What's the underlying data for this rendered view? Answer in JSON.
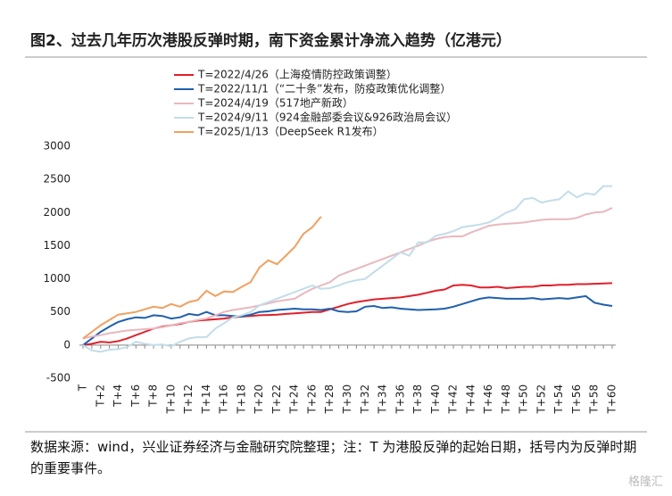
{
  "chart_data": {
    "type": "line",
    "title": "图2、过去几年历次港股反弹时期，南下资金累计净流入趋势（亿港元）",
    "categories": [
      "T",
      null,
      "T+2",
      null,
      "T+4",
      null,
      "T+6",
      null,
      "T+8",
      null,
      "T+10",
      null,
      "T+12",
      null,
      "T+14",
      null,
      "T+16",
      null,
      "T+18",
      null,
      "T+20",
      null,
      "T+22",
      null,
      "T+24",
      null,
      "T+26",
      null,
      "T+28",
      null,
      "T+30",
      null,
      "T+32",
      null,
      "T+34",
      null,
      "T+36",
      null,
      "T+38",
      null,
      "T+40",
      null,
      "T+42",
      null,
      "T+44",
      null,
      "T+46",
      null,
      "T+48",
      null,
      "T+50",
      null,
      "T+52",
      null,
      "T+54",
      null,
      "T+56",
      null,
      "T+58",
      null,
      "T+60"
    ],
    "series": [
      {
        "name": "T=2022/4/26（上海疫情防控政策调整）",
        "color": "#e0202a",
        "values": [
          0,
          20,
          50,
          40,
          60,
          100,
          150,
          200,
          250,
          280,
          300,
          320,
          350,
          370,
          380,
          390,
          400,
          420,
          430,
          440,
          450,
          455,
          460,
          470,
          480,
          490,
          500,
          500,
          540,
          580,
          620,
          650,
          670,
          690,
          700,
          710,
          720,
          740,
          760,
          790,
          820,
          840,
          900,
          910,
          900,
          870,
          870,
          880,
          860,
          870,
          880,
          880,
          900,
          900,
          910,
          910,
          920,
          920,
          925,
          930,
          935
        ]
      },
      {
        "name": "T=2022/11/1（“二十条”发布，防疫政策优化调整）",
        "color": "#1f5fad",
        "values": [
          0,
          100,
          200,
          280,
          350,
          390,
          420,
          410,
          450,
          440,
          400,
          420,
          470,
          450,
          500,
          450,
          450,
          440,
          430,
          460,
          500,
          510,
          530,
          540,
          550,
          540,
          540,
          530,
          550,
          510,
          500,
          510,
          580,
          590,
          560,
          570,
          550,
          540,
          530,
          535,
          540,
          550,
          580,
          620,
          660,
          700,
          720,
          710,
          700,
          700,
          700,
          710,
          690,
          700,
          710,
          700,
          720,
          740,
          640,
          610,
          590
        ]
      },
      {
        "name": "T=2024/4/19（517地产新政）",
        "color": "#e8b8be",
        "values": [
          100,
          130,
          150,
          180,
          200,
          220,
          230,
          240,
          250,
          270,
          300,
          330,
          350,
          380,
          400,
          450,
          500,
          530,
          550,
          570,
          600,
          630,
          660,
          680,
          700,
          780,
          850,
          900,
          950,
          1050,
          1100,
          1150,
          1200,
          1250,
          1300,
          1350,
          1400,
          1450,
          1500,
          1560,
          1600,
          1630,
          1640,
          1640,
          1700,
          1750,
          1800,
          1820,
          1830,
          1840,
          1850,
          1870,
          1890,
          1900,
          1900,
          1900,
          1920,
          1970,
          2000,
          2010,
          2070
        ]
      },
      {
        "name": "T=2024/9/11（924金融部委会议&926政治局会议）",
        "color": "#c3dde8",
        "values": [
          0,
          -80,
          -100,
          -70,
          -60,
          -30,
          50,
          20,
          0,
          10,
          -20,
          50,
          100,
          120,
          120,
          250,
          330,
          420,
          450,
          500,
          600,
          650,
          700,
          750,
          800,
          850,
          900,
          850,
          860,
          900,
          950,
          980,
          1000,
          1100,
          1200,
          1300,
          1400,
          1350,
          1550,
          1550,
          1650,
          1680,
          1720,
          1780,
          1800,
          1820,
          1850,
          1920,
          2000,
          2050,
          2200,
          2220,
          2150,
          2180,
          2200,
          2320,
          2230,
          2290,
          2270,
          2400,
          2400
        ]
      },
      {
        "name": "T=2025/1/13（DeepSeek R1发布）",
        "color": "#f0a060",
        "values": [
          100,
          200,
          300,
          380,
          460,
          480,
          500,
          540,
          580,
          560,
          620,
          580,
          650,
          680,
          820,
          740,
          810,
          800,
          880,
          950,
          1170,
          1280,
          1220,
          1350,
          1480,
          1680,
          1780,
          1940,
          null,
          null,
          null,
          null,
          null,
          null,
          null,
          null,
          null,
          null,
          null,
          null,
          null,
          null,
          null,
          null,
          null,
          null,
          null,
          null,
          null,
          null,
          null,
          null,
          null,
          null,
          null,
          null,
          null,
          null,
          null,
          null,
          null
        ]
      }
    ],
    "ylim": [
      -500,
      3000
    ],
    "yticks": [
      -500,
      0,
      500,
      1000,
      1500,
      2000,
      2500,
      3000
    ],
    "grid": false,
    "source": "数据来源：wind，兴业证券经济与金融研究院整理；注：T 为港股反弹的起始日期，括号内为反弹时期的重要事件。",
    "watermark": "格隆汇"
  }
}
